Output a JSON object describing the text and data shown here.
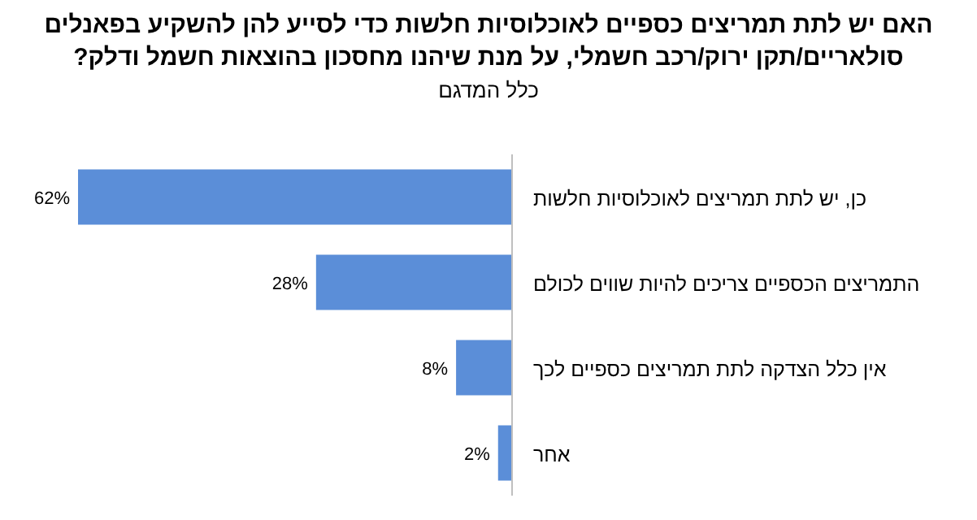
{
  "chart_data": {
    "type": "bar",
    "orientation": "horizontal",
    "title": "האם יש לתת תמריצים כספיים לאוכלוסיות חלשות כדי לסייע להן להשקיע בפאנלים סולאריים/תקן ירוק/רכב חשמלי, על מנת שיהנו מחסכון בהוצאות חשמל ודלק?",
    "subtitle": "כלל המדגם",
    "categories": [
      "כן, יש לתת תמריצים לאוכלוסיות חלשות",
      "התמריצים הכספיים צריכים להיות שווים לכולם",
      "אין כלל הצדקה לתת תמריצים כספיים לכך",
      "אחר"
    ],
    "values": [
      62,
      28,
      8,
      2
    ],
    "value_labels": [
      "62%",
      "28%",
      "8%",
      "2%"
    ],
    "color": "#5b8ed8"
  }
}
